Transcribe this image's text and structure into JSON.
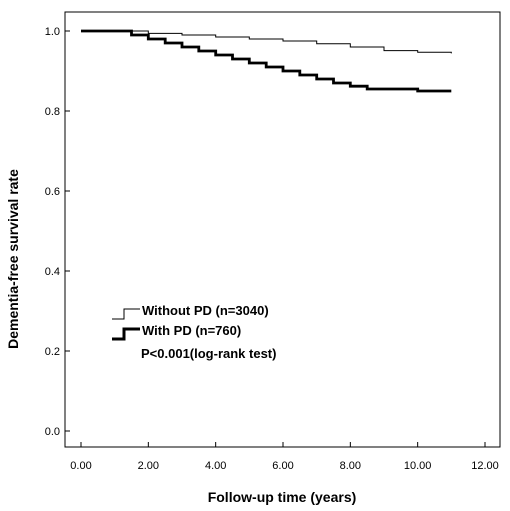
{
  "chart_data": {
    "type": "line",
    "title": "",
    "xlabel": "Follow-up time (years)",
    "ylabel": "Dementia-free survival rate",
    "xlim": [
      0,
      12
    ],
    "ylim": [
      0,
      1.0
    ],
    "xticks": [
      0,
      2,
      4,
      6,
      8,
      10,
      12
    ],
    "xtick_labels": [
      "0.00",
      "2.00",
      "4.00",
      "6.00",
      "8.00",
      "10.00",
      "12.00"
    ],
    "yticks": [
      0.0,
      0.2,
      0.4,
      0.6,
      0.8,
      1.0
    ],
    "ytick_labels": [
      "0.0",
      "0.2",
      "0.4",
      "0.6",
      "0.8",
      "1.0"
    ],
    "grid": false,
    "legend_position": "lower-left",
    "series": [
      {
        "name": "Without PD (n=3040)",
        "color": "#000000",
        "weight": "thin",
        "x": [
          0.0,
          1.0,
          2.0,
          3.0,
          4.0,
          5.0,
          6.0,
          7.0,
          8.0,
          9.0,
          10.0,
          11.0
        ],
        "y": [
          1.0,
          1.0,
          0.994,
          0.99,
          0.985,
          0.98,
          0.975,
          0.968,
          0.96,
          0.951,
          0.947,
          0.944
        ]
      },
      {
        "name": "With PD (n=760)",
        "color": "#000000",
        "weight": "thick",
        "x": [
          0.0,
          1.0,
          1.5,
          2.0,
          2.5,
          3.0,
          3.5,
          4.0,
          4.5,
          5.0,
          5.5,
          6.0,
          6.5,
          7.0,
          7.5,
          8.0,
          8.5,
          9.0,
          9.5,
          10.0,
          11.0
        ],
        "y": [
          1.0,
          1.0,
          0.99,
          0.98,
          0.97,
          0.96,
          0.95,
          0.94,
          0.93,
          0.92,
          0.91,
          0.9,
          0.89,
          0.88,
          0.87,
          0.862,
          0.855,
          0.855,
          0.855,
          0.85,
          0.85
        ]
      }
    ],
    "annotations": [
      "P<0.001(log-rank test)"
    ]
  }
}
